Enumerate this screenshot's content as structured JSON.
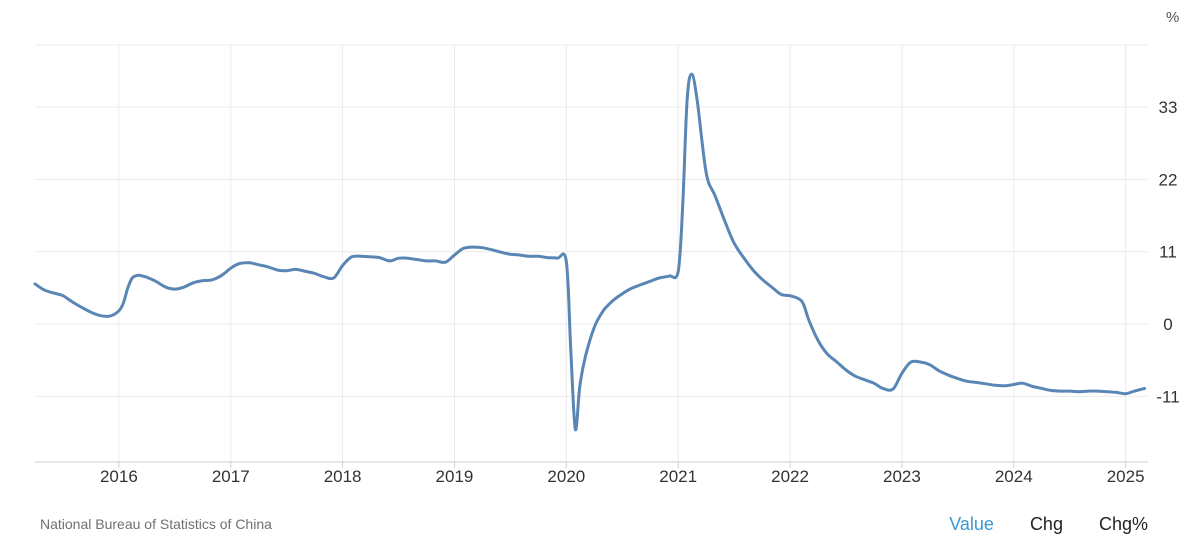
{
  "chart_data": {
    "type": "line",
    "unit": "%",
    "x_ticks": [
      "2016",
      "2017",
      "2018",
      "2019",
      "2020",
      "2021",
      "2022",
      "2023",
      "2024",
      "2025"
    ],
    "y_ticks": [
      -11,
      0,
      11,
      22,
      33
    ],
    "ylim": [
      -21,
      43
    ],
    "xlim": [
      2015.25,
      2025.2
    ],
    "grid": true,
    "color": "#5a86b5",
    "series": [
      {
        "x": [
          2015.25,
          2015.33,
          2015.42,
          2015.5,
          2015.58,
          2015.67,
          2015.75,
          2015.83,
          2015.92,
          2016.0,
          2016.04,
          2016.08,
          2016.12,
          2016.17,
          2016.21,
          2016.25,
          2016.33,
          2016.42,
          2016.5,
          2016.58,
          2016.67,
          2016.75,
          2016.83,
          2016.92,
          2017.0,
          2017.08,
          2017.17,
          2017.25,
          2017.33,
          2017.42,
          2017.5,
          2017.58,
          2017.67,
          2017.75,
          2017.83,
          2017.92,
          2018.0,
          2018.08,
          2018.17,
          2018.25,
          2018.33,
          2018.42,
          2018.5,
          2018.58,
          2018.67,
          2018.75,
          2018.83,
          2018.92,
          2019.0,
          2019.08,
          2019.17,
          2019.25,
          2019.33,
          2019.42,
          2019.5,
          2019.58,
          2019.67,
          2019.75,
          2019.83,
          2019.92,
          2020.0,
          2020.04,
          2020.08,
          2020.12,
          2020.17,
          2020.25,
          2020.33,
          2020.42,
          2020.5,
          2020.58,
          2020.67,
          2020.75,
          2020.83,
          2020.92,
          2021.0,
          2021.04,
          2021.08,
          2021.12,
          2021.17,
          2021.25,
          2021.33,
          2021.42,
          2021.5,
          2021.58,
          2021.67,
          2021.75,
          2021.83,
          2021.92,
          2022.0,
          2022.08,
          2022.12,
          2022.17,
          2022.25,
          2022.33,
          2022.42,
          2022.5,
          2022.58,
          2022.67,
          2022.75,
          2022.83,
          2022.92,
          2023.0,
          2023.08,
          2023.17,
          2023.25,
          2023.33,
          2023.42,
          2023.5,
          2023.58,
          2023.67,
          2023.75,
          2023.83,
          2023.92,
          2024.0,
          2024.08,
          2024.17,
          2024.25,
          2024.33,
          2024.42,
          2024.5,
          2024.58,
          2024.67,
          2024.75,
          2024.83,
          2024.92,
          2025.0,
          2025.08,
          2025.17
        ],
        "y": [
          6.1,
          5.2,
          4.7,
          4.3,
          3.4,
          2.5,
          1.8,
          1.3,
          1.2,
          2.0,
          3.2,
          5.5,
          7.0,
          7.4,
          7.3,
          7.1,
          6.5,
          5.6,
          5.3,
          5.6,
          6.3,
          6.6,
          6.7,
          7.4,
          8.5,
          9.2,
          9.3,
          9.0,
          8.7,
          8.2,
          8.1,
          8.3,
          8.0,
          7.7,
          7.2,
          7.0,
          8.9,
          10.2,
          10.3,
          10.2,
          10.1,
          9.6,
          10.0,
          10.0,
          9.8,
          9.6,
          9.6,
          9.4,
          10.5,
          11.5,
          11.7,
          11.6,
          11.3,
          10.9,
          10.6,
          10.5,
          10.3,
          10.3,
          10.1,
          10.0,
          9.5,
          -4.0,
          -16.0,
          -9.5,
          -5.0,
          -0.5,
          2.0,
          3.6,
          4.6,
          5.4,
          6.0,
          6.5,
          7.0,
          7.3,
          8.0,
          18.0,
          34.0,
          38.0,
          34.0,
          23.0,
          19.5,
          15.5,
          12.3,
          10.2,
          8.2,
          6.8,
          5.7,
          4.5,
          4.3,
          3.8,
          3.0,
          0.5,
          -2.5,
          -4.5,
          -5.8,
          -7.0,
          -7.9,
          -8.5,
          -9.0,
          -9.8,
          -9.9,
          -7.5,
          -5.8,
          -5.8,
          -6.2,
          -7.1,
          -7.8,
          -8.3,
          -8.7,
          -8.9,
          -9.1,
          -9.3,
          -9.4,
          -9.2,
          -9.0,
          -9.5,
          -9.8,
          -10.1,
          -10.2,
          -10.2,
          -10.3,
          -10.2,
          -10.2,
          -10.3,
          -10.4,
          -10.6,
          -10.2,
          -9.8
        ]
      }
    ]
  },
  "source": "National Bureau of Statistics of China",
  "tabs": [
    {
      "label": "Value",
      "active": true
    },
    {
      "label": "Chg",
      "active": false
    },
    {
      "label": "Chg%",
      "active": false
    }
  ]
}
